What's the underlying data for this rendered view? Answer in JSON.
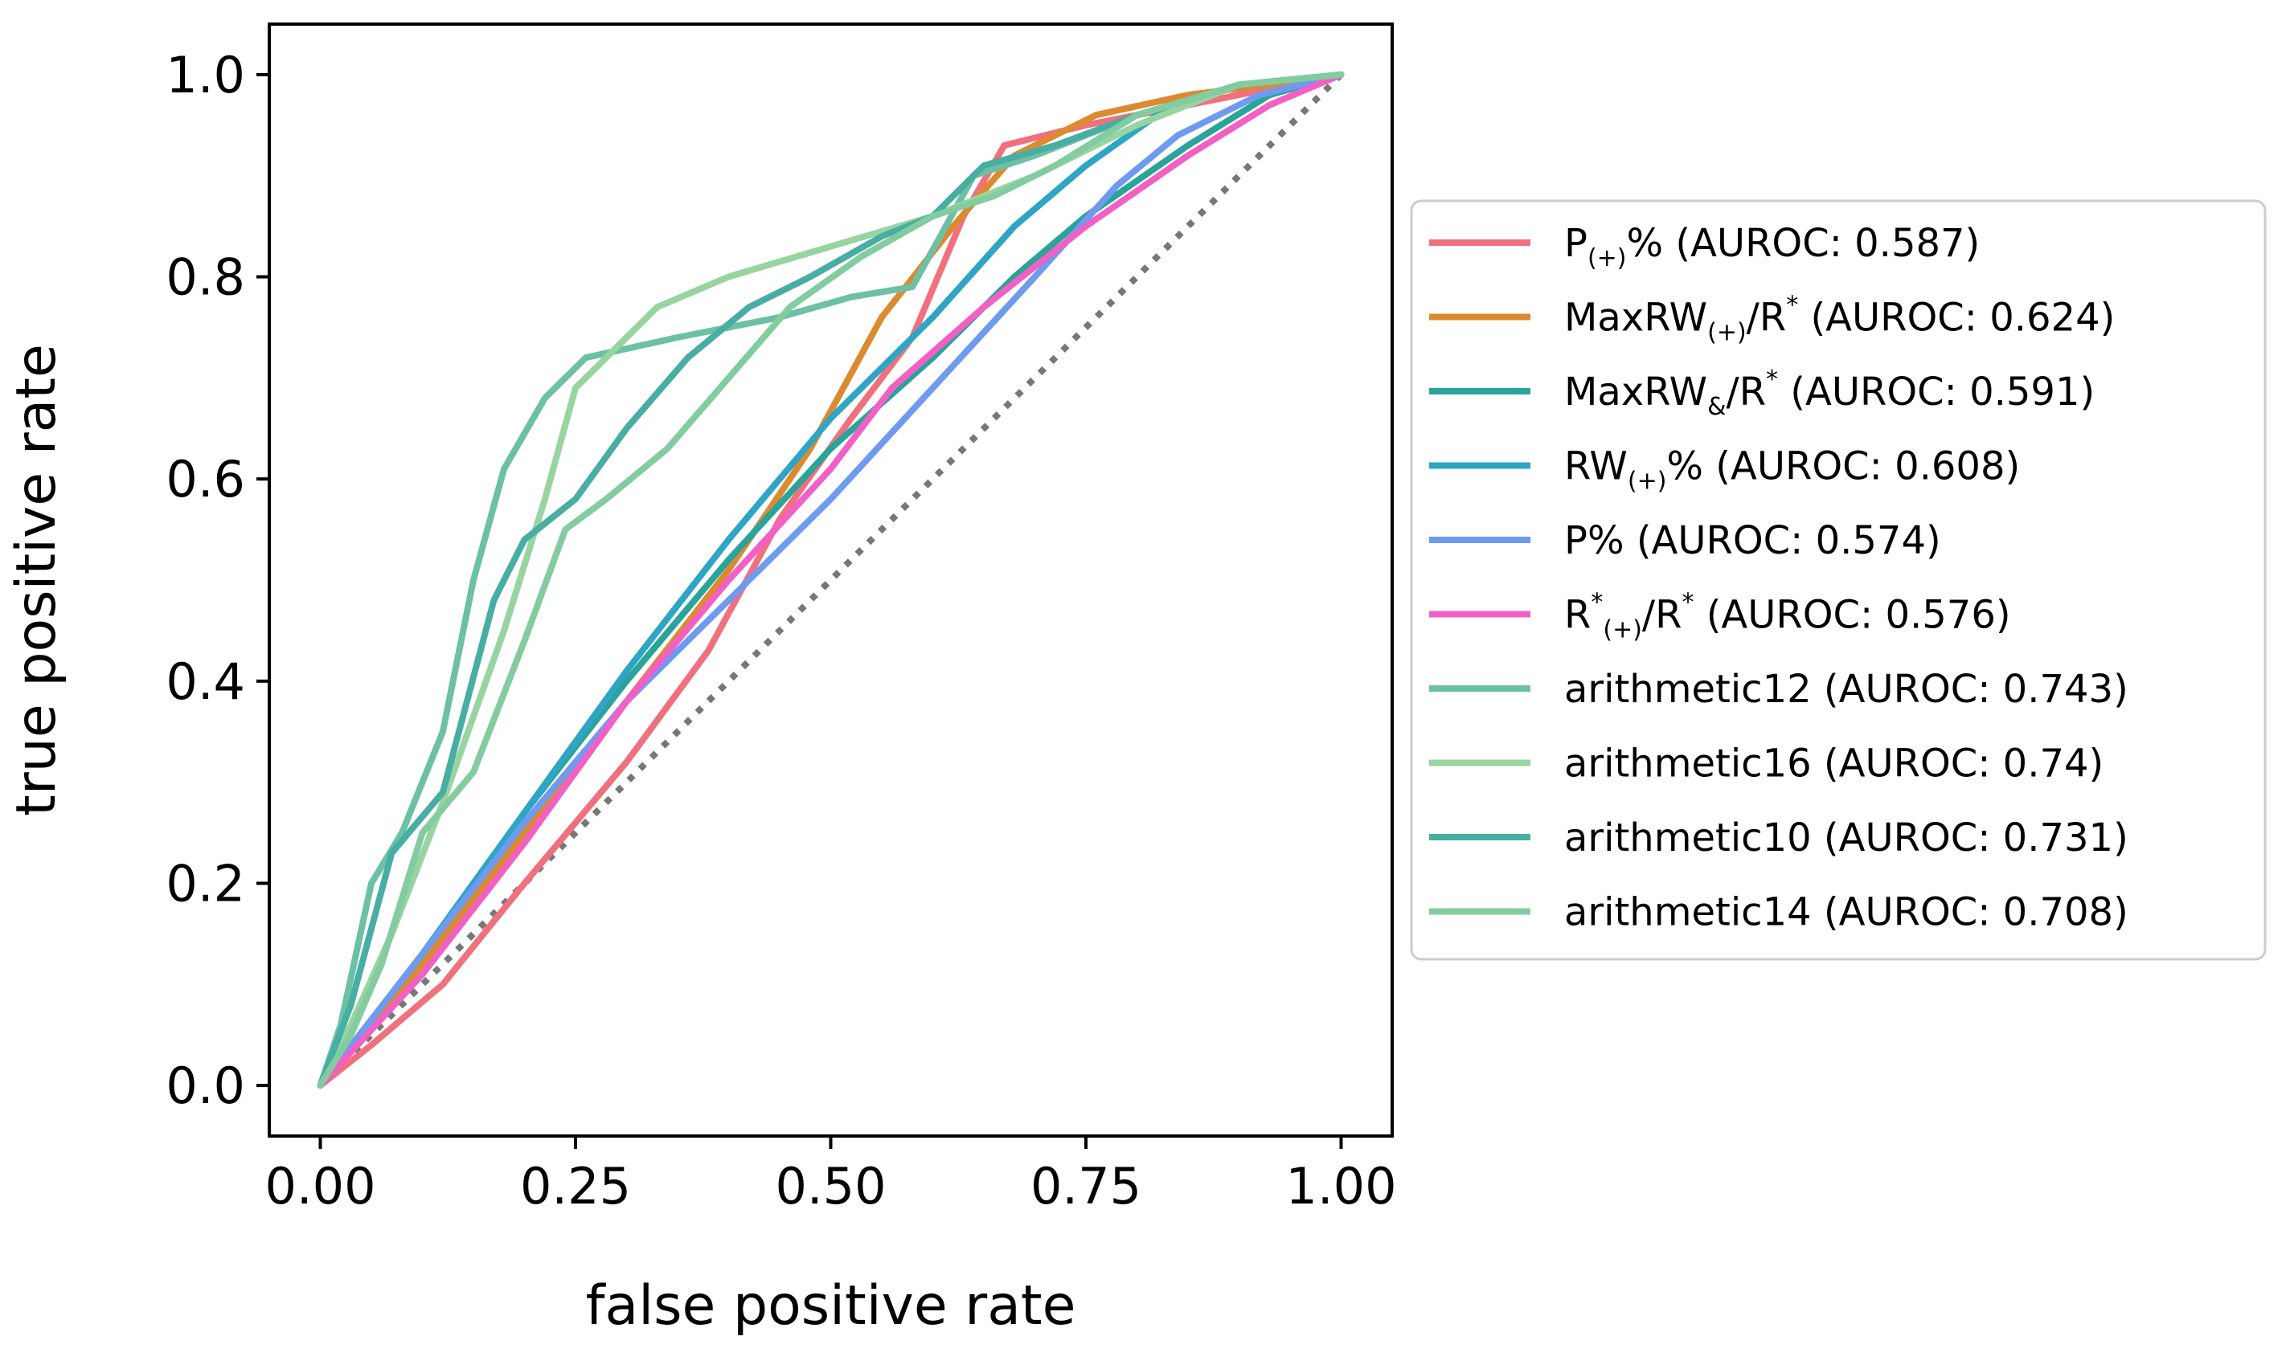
{
  "chart_data": {
    "type": "line",
    "xlabel": "false positive rate",
    "ylabel": "true positive rate",
    "xlim": [
      -0.05,
      1.05
    ],
    "ylim": [
      -0.05,
      1.05
    ],
    "xticks": [
      0.0,
      0.25,
      0.5,
      0.75,
      1.0
    ],
    "xtick_labels": [
      "0.00",
      "0.25",
      "0.50",
      "0.75",
      "1.00"
    ],
    "yticks": [
      0.0,
      0.2,
      0.4,
      0.6,
      0.8,
      1.0
    ],
    "ytick_labels": [
      "0.0",
      "0.2",
      "0.4",
      "0.6",
      "0.8",
      "1.0"
    ],
    "grid": false,
    "legend_position": "outside-right",
    "diagonal": {
      "style": "dotted",
      "color": "#777777",
      "from": [
        0,
        0
      ],
      "to": [
        1,
        1
      ]
    },
    "series": [
      {
        "name": "P(+)% (AUROC: 0.587)",
        "legend_parts": [
          [
            "P",
            ""
          ],
          [
            "(+)",
            "sub"
          ],
          [
            "% (AUROC: 0.587)",
            ""
          ]
        ],
        "color": "#f0707e",
        "points": [
          [
            0,
            0
          ],
          [
            0.05,
            0.04
          ],
          [
            0.12,
            0.1
          ],
          [
            0.2,
            0.2
          ],
          [
            0.3,
            0.32
          ],
          [
            0.38,
            0.43
          ],
          [
            0.45,
            0.56
          ],
          [
            0.52,
            0.66
          ],
          [
            0.58,
            0.74
          ],
          [
            0.63,
            0.86
          ],
          [
            0.67,
            0.93
          ],
          [
            0.75,
            0.95
          ],
          [
            0.85,
            0.97
          ],
          [
            0.95,
            0.99
          ],
          [
            1,
            1
          ]
        ]
      },
      {
        "name": "MaxRW(+)/R* (AUROC: 0.624)",
        "legend_parts": [
          [
            "MaxRW",
            ""
          ],
          [
            "(+)",
            "sub"
          ],
          [
            "/R",
            ""
          ],
          [
            "*",
            "sup"
          ],
          [
            " (AUROC: 0.624)",
            ""
          ]
        ],
        "color": "#dc8a30",
        "points": [
          [
            0,
            0
          ],
          [
            0.1,
            0.12
          ],
          [
            0.2,
            0.25
          ],
          [
            0.3,
            0.38
          ],
          [
            0.4,
            0.51
          ],
          [
            0.48,
            0.63
          ],
          [
            0.55,
            0.76
          ],
          [
            0.62,
            0.85
          ],
          [
            0.68,
            0.92
          ],
          [
            0.76,
            0.96
          ],
          [
            0.85,
            0.98
          ],
          [
            0.93,
            0.99
          ],
          [
            1,
            1
          ]
        ]
      },
      {
        "name": "MaxRW&/R* (AUROC: 0.591)",
        "legend_parts": [
          [
            "MaxRW",
            ""
          ],
          [
            "&",
            "sub"
          ],
          [
            "/R",
            ""
          ],
          [
            "*",
            "sup"
          ],
          [
            " (AUROC: 0.591)",
            ""
          ]
        ],
        "color": "#2aa39a",
        "points": [
          [
            0,
            0
          ],
          [
            0.1,
            0.13
          ],
          [
            0.2,
            0.27
          ],
          [
            0.3,
            0.4
          ],
          [
            0.4,
            0.52
          ],
          [
            0.5,
            0.63
          ],
          [
            0.6,
            0.72
          ],
          [
            0.68,
            0.8
          ],
          [
            0.75,
            0.86
          ],
          [
            0.85,
            0.93
          ],
          [
            0.93,
            0.98
          ],
          [
            1,
            1
          ]
        ]
      },
      {
        "name": "RW(+)% (AUROC: 0.608)",
        "legend_parts": [
          [
            "RW",
            ""
          ],
          [
            "(+)",
            "sub"
          ],
          [
            "% (AUROC: 0.608)",
            ""
          ]
        ],
        "color": "#2fa5c6",
        "points": [
          [
            0,
            0
          ],
          [
            0.1,
            0.13
          ],
          [
            0.2,
            0.27
          ],
          [
            0.3,
            0.41
          ],
          [
            0.4,
            0.54
          ],
          [
            0.5,
            0.66
          ],
          [
            0.6,
            0.76
          ],
          [
            0.68,
            0.85
          ],
          [
            0.75,
            0.91
          ],
          [
            0.82,
            0.96
          ],
          [
            0.9,
            0.99
          ],
          [
            1,
            1
          ]
        ]
      },
      {
        "name": "P% (AUROC: 0.574)",
        "legend_parts": [
          [
            "P% (AUROC: 0.574)",
            ""
          ]
        ],
        "color": "#6e9bef",
        "points": [
          [
            0,
            0
          ],
          [
            0.1,
            0.13
          ],
          [
            0.2,
            0.26
          ],
          [
            0.3,
            0.38
          ],
          [
            0.4,
            0.48
          ],
          [
            0.5,
            0.58
          ],
          [
            0.6,
            0.69
          ],
          [
            0.7,
            0.8
          ],
          [
            0.78,
            0.89
          ],
          [
            0.84,
            0.94
          ],
          [
            0.92,
            0.98
          ],
          [
            1,
            1
          ]
        ]
      },
      {
        "name": "R*(+)/R* (AUROC: 0.576)",
        "legend_parts": [
          [
            "R",
            ""
          ],
          [
            "*",
            "sup"
          ],
          [
            "(+)",
            "sub"
          ],
          [
            "/R",
            ""
          ],
          [
            "*",
            "sup"
          ],
          [
            " (AUROC: 0.576)",
            ""
          ]
        ],
        "color": "#f260c6",
        "points": [
          [
            0,
            0
          ],
          [
            0.1,
            0.11
          ],
          [
            0.2,
            0.24
          ],
          [
            0.3,
            0.38
          ],
          [
            0.4,
            0.5
          ],
          [
            0.5,
            0.61
          ],
          [
            0.56,
            0.69
          ],
          [
            0.65,
            0.77
          ],
          [
            0.75,
            0.85
          ],
          [
            0.85,
            0.92
          ],
          [
            0.93,
            0.97
          ],
          [
            1,
            1
          ]
        ]
      },
      {
        "name": "arithmetic12 (AUROC: 0.743)",
        "legend_parts": [
          [
            "arithmetic12 (AUROC: 0.743)",
            ""
          ]
        ],
        "color": "#6cc0a4",
        "points": [
          [
            0,
            0
          ],
          [
            0.02,
            0.06
          ],
          [
            0.05,
            0.2
          ],
          [
            0.08,
            0.25
          ],
          [
            0.12,
            0.35
          ],
          [
            0.15,
            0.5
          ],
          [
            0.18,
            0.61
          ],
          [
            0.22,
            0.68
          ],
          [
            0.26,
            0.72
          ],
          [
            0.35,
            0.74
          ],
          [
            0.45,
            0.76
          ],
          [
            0.52,
            0.78
          ],
          [
            0.58,
            0.79
          ],
          [
            0.64,
            0.9
          ],
          [
            0.7,
            0.92
          ],
          [
            0.8,
            0.96
          ],
          [
            0.9,
            0.99
          ],
          [
            1,
            1
          ]
        ]
      },
      {
        "name": "arithmetic16 (AUROC: 0.74)",
        "legend_parts": [
          [
            "arithmetic16 (AUROC: 0.74)",
            ""
          ]
        ],
        "color": "#98d4a0",
        "points": [
          [
            0,
            0
          ],
          [
            0.03,
            0.06
          ],
          [
            0.07,
            0.15
          ],
          [
            0.12,
            0.28
          ],
          [
            0.18,
            0.45
          ],
          [
            0.22,
            0.58
          ],
          [
            0.25,
            0.69
          ],
          [
            0.3,
            0.74
          ],
          [
            0.33,
            0.77
          ],
          [
            0.4,
            0.8
          ],
          [
            0.5,
            0.83
          ],
          [
            0.6,
            0.86
          ],
          [
            0.7,
            0.9
          ],
          [
            0.8,
            0.95
          ],
          [
            0.9,
            0.99
          ],
          [
            1,
            1
          ]
        ]
      },
      {
        "name": "arithmetic10 (AUROC: 0.731)",
        "legend_parts": [
          [
            "arithmetic10 (AUROC: 0.731)",
            ""
          ]
        ],
        "color": "#48aea3",
        "points": [
          [
            0,
            0
          ],
          [
            0.03,
            0.08
          ],
          [
            0.07,
            0.23
          ],
          [
            0.12,
            0.29
          ],
          [
            0.17,
            0.48
          ],
          [
            0.2,
            0.54
          ],
          [
            0.25,
            0.58
          ],
          [
            0.3,
            0.65
          ],
          [
            0.36,
            0.72
          ],
          [
            0.42,
            0.77
          ],
          [
            0.48,
            0.8
          ],
          [
            0.55,
            0.84
          ],
          [
            0.6,
            0.86
          ],
          [
            0.65,
            0.91
          ],
          [
            0.72,
            0.93
          ],
          [
            0.8,
            0.96
          ],
          [
            0.9,
            0.99
          ],
          [
            1,
            1
          ]
        ]
      },
      {
        "name": "arithmetic14 (AUROC: 0.708)",
        "legend_parts": [
          [
            "arithmetic14 (AUROC: 0.708)",
            ""
          ]
        ],
        "color": "#82cca0",
        "points": [
          [
            0,
            0
          ],
          [
            0.03,
            0.05
          ],
          [
            0.06,
            0.12
          ],
          [
            0.1,
            0.25
          ],
          [
            0.15,
            0.31
          ],
          [
            0.2,
            0.44
          ],
          [
            0.24,
            0.55
          ],
          [
            0.28,
            0.58
          ],
          [
            0.34,
            0.63
          ],
          [
            0.4,
            0.7
          ],
          [
            0.46,
            0.77
          ],
          [
            0.53,
            0.82
          ],
          [
            0.6,
            0.86
          ],
          [
            0.66,
            0.88
          ],
          [
            0.72,
            0.91
          ],
          [
            0.8,
            0.96
          ],
          [
            0.9,
            0.99
          ],
          [
            1,
            1
          ]
        ]
      }
    ]
  }
}
